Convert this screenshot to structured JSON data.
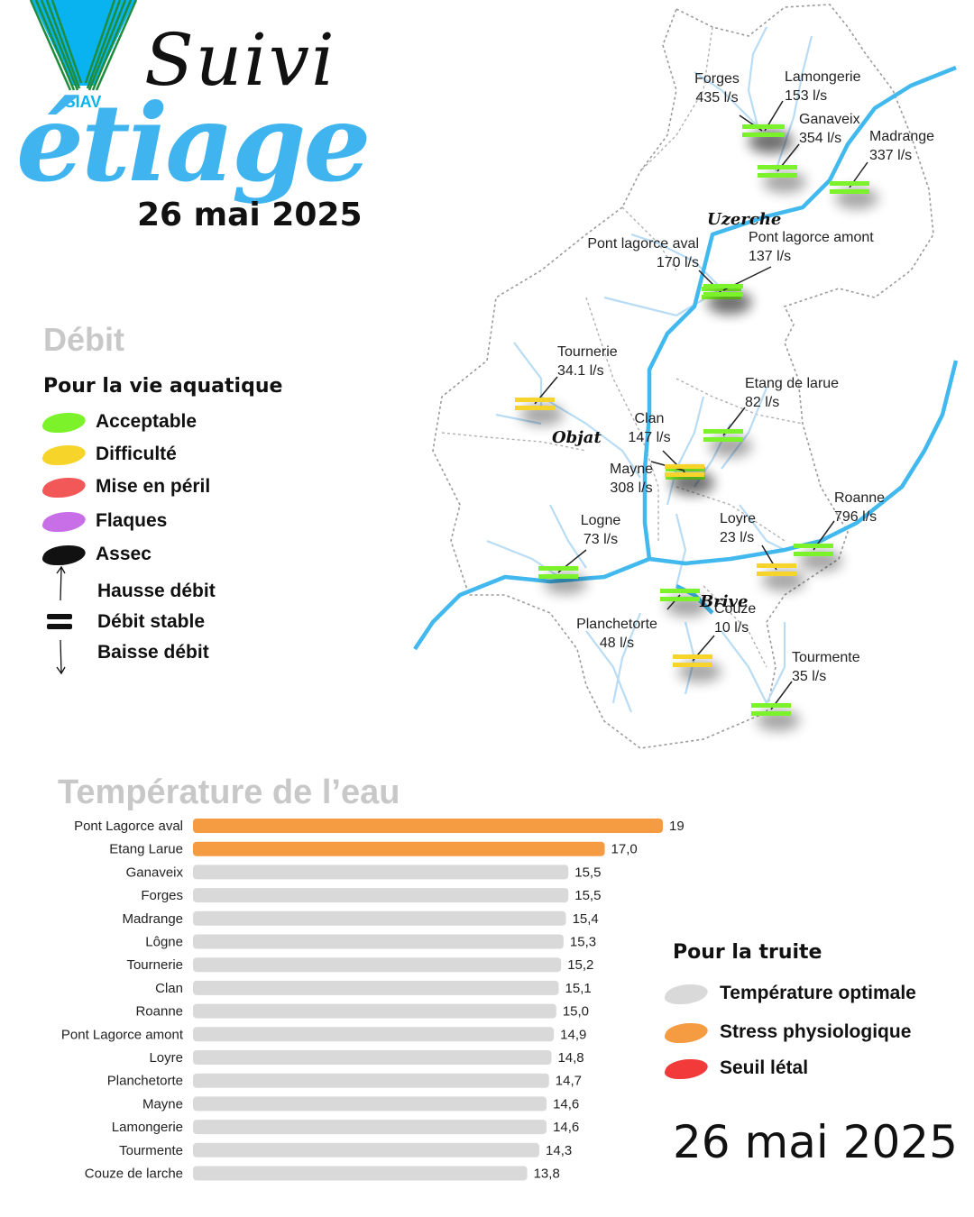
{
  "header": {
    "logo_text": "SIAV",
    "title_line1": "Suivi",
    "title_line2": "étiage",
    "date": "26 mai 2025"
  },
  "flow_legend": {
    "heading": "Débit",
    "subheading": "Pour la vie aquatique",
    "categories": [
      {
        "label": "Acceptable",
        "color": "#7cf22a"
      },
      {
        "label": "Difficulté",
        "color": "#f7d42a"
      },
      {
        "label": "Mise en péril",
        "color": "#f25858"
      },
      {
        "label": "Flaques",
        "color": "#c86ee6"
      },
      {
        "label": "Assec",
        "color": "#111111"
      }
    ],
    "trends": [
      {
        "label": "Hausse débit",
        "icon": "arrow-up-icon"
      },
      {
        "label": "Débit stable",
        "icon": "equals-icon"
      },
      {
        "label": "Baisse débit",
        "icon": "arrow-down-icon"
      }
    ]
  },
  "map": {
    "towns": [
      "Uzerche",
      "Objat",
      "Brive"
    ],
    "stations": [
      {
        "name": "Forges",
        "flow": "435 l/s",
        "status": "Acceptable",
        "trend": "stable"
      },
      {
        "name": "Lamongerie",
        "flow": "153 l/s",
        "status": "Acceptable",
        "trend": "stable"
      },
      {
        "name": "Ganaveix",
        "flow": "354 l/s",
        "status": "Acceptable",
        "trend": "stable"
      },
      {
        "name": "Madrange",
        "flow": "337 l/s",
        "status": "Acceptable",
        "trend": "stable"
      },
      {
        "name": "Pont lagorce aval",
        "flow": "170 l/s",
        "status": "Acceptable",
        "trend": "stable"
      },
      {
        "name": "Pont lagorce amont",
        "flow": "137 l/s",
        "status": "Acceptable",
        "trend": "stable"
      },
      {
        "name": "Tournerie",
        "flow": "34.1 l/s",
        "status": "Difficulté",
        "trend": "stable"
      },
      {
        "name": "Etang de larue",
        "flow": "82 l/s",
        "status": "Acceptable",
        "trend": "stable"
      },
      {
        "name": "Clan",
        "flow": "147 l/s",
        "status": "Acceptable",
        "trend": "stable"
      },
      {
        "name": "Mayne",
        "flow": "308 l/s",
        "status": "Difficulté",
        "trend": "stable"
      },
      {
        "name": "Roanne",
        "flow": "796 l/s",
        "status": "Acceptable",
        "trend": "stable"
      },
      {
        "name": "Logne",
        "flow": "73 l/s",
        "status": "Acceptable",
        "trend": "stable"
      },
      {
        "name": "Loyre",
        "flow": "23 l/s",
        "status": "Difficulté",
        "trend": "stable"
      },
      {
        "name": "Couze",
        "flow": "10 l/s",
        "status": "Difficulté",
        "trend": "stable"
      },
      {
        "name": "Planchetorte",
        "flow": "48 l/s",
        "status": "Acceptable",
        "trend": "stable"
      },
      {
        "name": "Tourmente",
        "flow": "35 l/s",
        "status": "Acceptable",
        "trend": "stable"
      }
    ]
  },
  "temperature": {
    "heading": "Température de l’eau",
    "legend_heading": "Pour la truite",
    "legend": [
      {
        "label": "Température optimale",
        "color": "#d9d9d9"
      },
      {
        "label": "Stress physiologique",
        "color": "#f59b42"
      },
      {
        "label": "Seuil létal",
        "color": "#f23a3a"
      }
    ],
    "date": "26 mai 2025"
  },
  "chart_data": {
    "type": "bar",
    "orientation": "horizontal",
    "title": "Température de l’eau",
    "categories": [
      "Pont Lagorce aval",
      "Etang Larue",
      "Ganaveix",
      "Forges",
      "Madrange",
      "Lôgne",
      "Tournerie",
      "Clan",
      "Roanne",
      "Pont Lagorce amont",
      "Loyre",
      "Planchetorte",
      "Mayne",
      "Lamongerie",
      "Tourmente",
      "Couze de larche"
    ],
    "values": [
      19.4,
      17.0,
      15.5,
      15.5,
      15.4,
      15.3,
      15.2,
      15.1,
      15.0,
      14.9,
      14.8,
      14.7,
      14.6,
      14.6,
      14.3,
      13.8
    ],
    "value_labels": [
      "19,4",
      "17,0",
      "15,5",
      "15,5",
      "15,4",
      "15,3",
      "15,2",
      "15,1",
      "15,0",
      "14,9",
      "14,8",
      "14,7",
      "14,6",
      "14,6",
      "14,3",
      "13,8"
    ],
    "colors": [
      "#f59b42",
      "#f59b42",
      "#d9d9d9",
      "#d9d9d9",
      "#d9d9d9",
      "#d9d9d9",
      "#d9d9d9",
      "#d9d9d9",
      "#d9d9d9",
      "#d9d9d9",
      "#d9d9d9",
      "#d9d9d9",
      "#d9d9d9",
      "#d9d9d9",
      "#d9d9d9",
      "#d9d9d9"
    ],
    "xlim": [
      0,
      19.4
    ],
    "grid": false
  }
}
